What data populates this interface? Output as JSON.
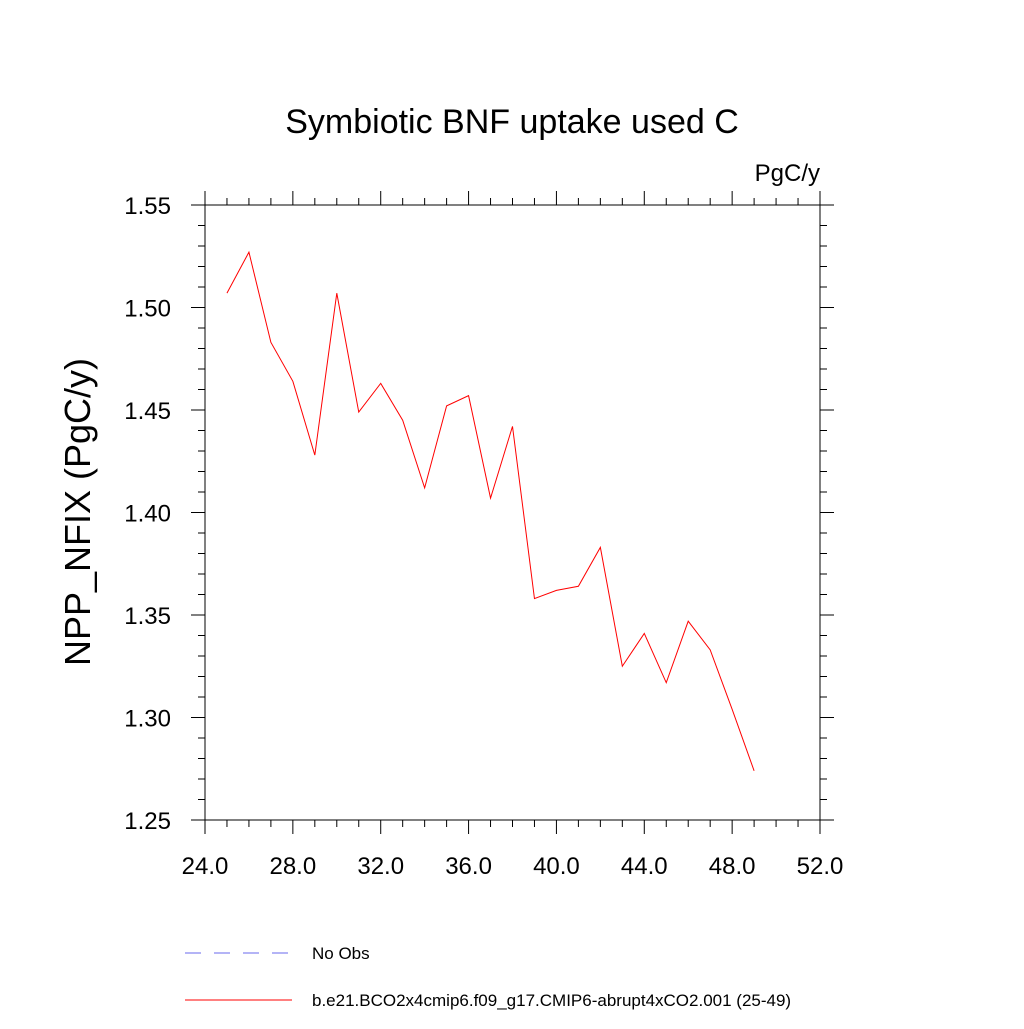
{
  "chart_data": {
    "type": "line",
    "title": "Symbiotic BNF uptake used C",
    "units_label": "PgC/y",
    "xlabel": "",
    "ylabel": "NPP_NFIX  (PgC/y)",
    "xlim": [
      24.0,
      52.0
    ],
    "ylim": [
      1.25,
      1.55
    ],
    "x_ticks": [
      "24.0",
      "28.0",
      "32.0",
      "36.0",
      "40.0",
      "44.0",
      "48.0",
      "52.0"
    ],
    "y_ticks": [
      "1.25",
      "1.30",
      "1.35",
      "1.40",
      "1.45",
      "1.50",
      "1.55"
    ],
    "grid": false,
    "series": [
      {
        "name": "b.e21.BCO2x4cmip6.f09_g17.CMIP6-abrupt4xCO2.001 (25-49)",
        "color": "#ff0000",
        "style": "solid",
        "x": [
          25,
          26,
          27,
          28,
          29,
          30,
          31,
          32,
          33,
          34,
          35,
          36,
          37,
          38,
          39,
          40,
          41,
          42,
          43,
          44,
          45,
          46,
          47,
          48,
          49
        ],
        "y": [
          1.507,
          1.527,
          1.483,
          1.464,
          1.428,
          1.507,
          1.449,
          1.463,
          1.445,
          1.412,
          1.452,
          1.457,
          1.407,
          1.442,
          1.358,
          1.362,
          1.364,
          1.383,
          1.325,
          1.341,
          1.317,
          1.347,
          1.333,
          1.304,
          1.274
        ]
      }
    ],
    "legend": [
      {
        "label": "No Obs",
        "color": "#6a6aee",
        "style": "dashed"
      },
      {
        "label": "b.e21.BCO2x4cmip6.f09_g17.CMIP6-abrupt4xCO2.001 (25-49)",
        "color": "#ff0000",
        "style": "solid"
      }
    ],
    "legend_position": "bottom"
  }
}
